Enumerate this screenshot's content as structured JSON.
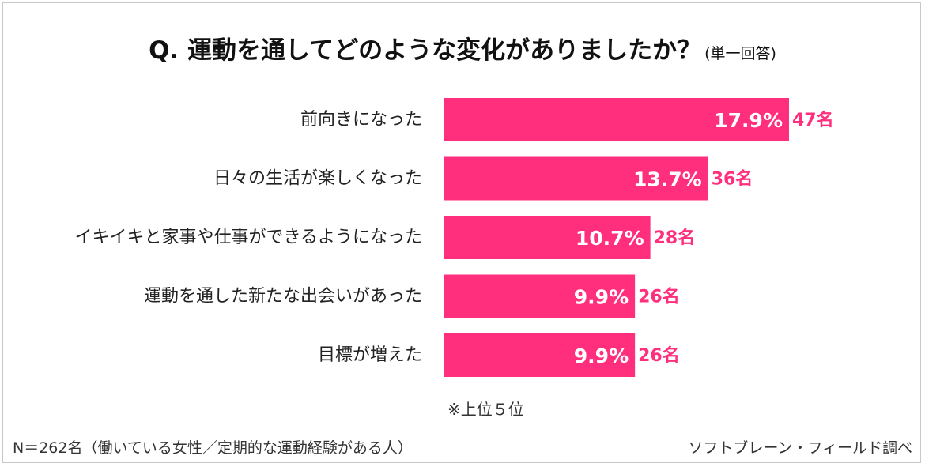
{
  "title": {
    "main": "Q.  運動を通してどのような変化がありましたか？",
    "sub": "(単一回答)"
  },
  "colors": {
    "bar": "#ff2f7d",
    "count_text": "#ff2f7d"
  },
  "chart_data": {
    "type": "bar",
    "orientation": "horizontal",
    "categories": [
      "前向きになった",
      "日々の生活が楽しくなった",
      "イキイキと家事や仕事ができるようになった",
      "運動を通した新たな出会いがあった",
      "目標が増えた"
    ],
    "values": [
      17.9,
      13.7,
      10.7,
      9.9,
      9.9
    ],
    "value_labels": [
      "17.9%",
      "13.7%",
      "10.7%",
      "9.9%",
      "9.9%"
    ],
    "counts": [
      "47名",
      "36名",
      "28名",
      "26名",
      "26名"
    ],
    "grid": false,
    "legend": "none"
  },
  "note": "※上位５位",
  "footer": {
    "left": "N＝262名（働いている女性／定期的な運動経験がある人）",
    "right": "ソフトブレーン・フィールド調べ"
  }
}
